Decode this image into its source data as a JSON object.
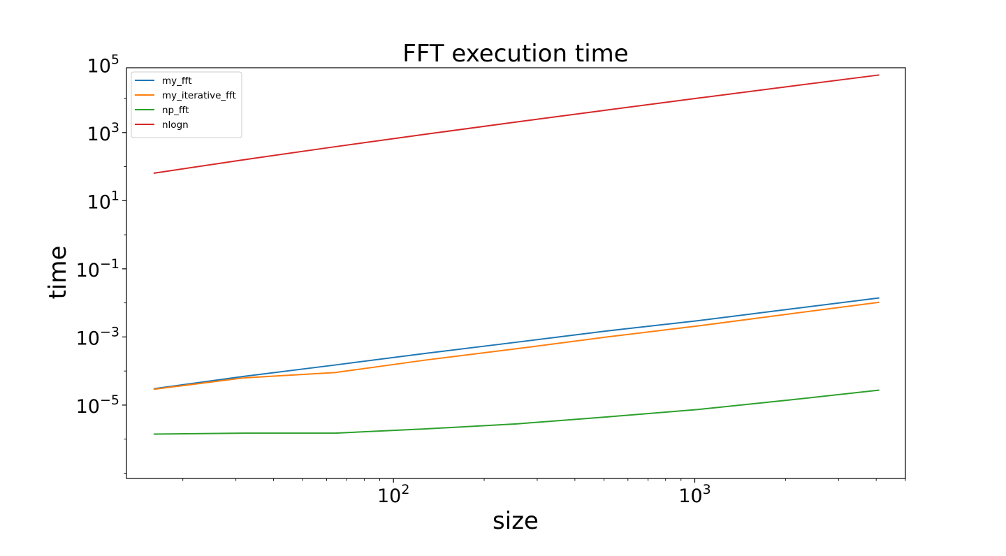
{
  "chart_data": {
    "type": "line",
    "title": "FFT execution time",
    "xlabel": "size",
    "ylabel": "time",
    "xscale": "log",
    "yscale": "log",
    "xlim": [
      13,
      5000
    ],
    "ylim": [
      7e-08,
      80000
    ],
    "x_ticks": [
      {
        "value": 100,
        "base": "10",
        "exp": "2"
      },
      {
        "value": 1000,
        "base": "10",
        "exp": "3"
      }
    ],
    "y_ticks": [
      {
        "value": 100000,
        "base": "10",
        "exp": "5"
      },
      {
        "value": 1000,
        "base": "10",
        "exp": "3"
      },
      {
        "value": 10,
        "base": "10",
        "exp": "1"
      },
      {
        "value": 0.1,
        "base": "10",
        "exp": "−1"
      },
      {
        "value": 0.001,
        "base": "10",
        "exp": "−3"
      },
      {
        "value": 1e-05,
        "base": "10",
        "exp": "−5"
      }
    ],
    "x": [
      16,
      32,
      64,
      128,
      256,
      512,
      1024,
      2048,
      4096
    ],
    "series": [
      {
        "name": "my_fft",
        "color": "#1f77b4",
        "values": [
          3e-05,
          7e-05,
          0.00015,
          0.00033,
          0.0007,
          0.0015,
          0.003,
          0.0065,
          0.014
        ]
      },
      {
        "name": "my_iterative_fft",
        "color": "#ff7f0e",
        "values": [
          2.9e-05,
          6.3e-05,
          9e-05,
          0.00021,
          0.00045,
          0.001,
          0.0021,
          0.0047,
          0.0104
        ]
      },
      {
        "name": "np_fft",
        "color": "#2ca02c",
        "values": [
          1.4e-06,
          1.5e-06,
          1.5e-06,
          2e-06,
          2.8e-06,
          4.5e-06,
          7.4e-06,
          1.4e-05,
          2.75e-05
        ]
      },
      {
        "name": "nlogn",
        "color": "#d62728",
        "values": [
          64,
          160,
          384,
          896,
          2048,
          4608,
          10240,
          22528,
          49152
        ]
      }
    ],
    "legend": {
      "position": "top-left"
    },
    "grid": false
  }
}
